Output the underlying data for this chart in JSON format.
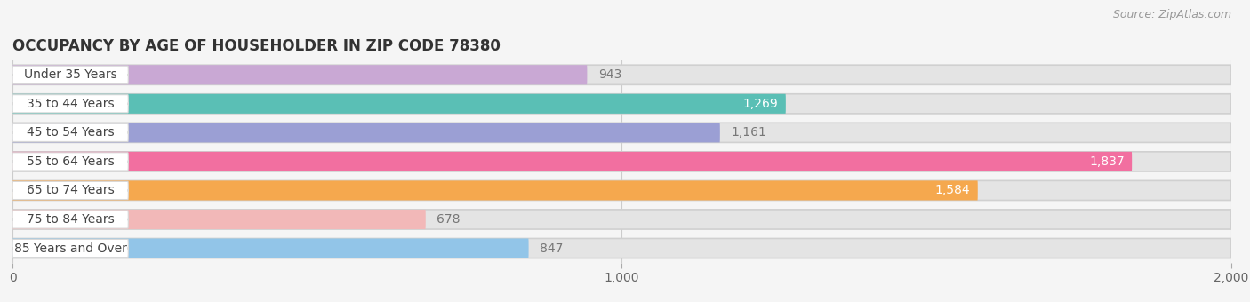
{
  "title": "OCCUPANCY BY AGE OF HOUSEHOLDER IN ZIP CODE 78380",
  "source": "Source: ZipAtlas.com",
  "categories": [
    "Under 35 Years",
    "35 to 44 Years",
    "45 to 54 Years",
    "55 to 64 Years",
    "65 to 74 Years",
    "75 to 84 Years",
    "85 Years and Over"
  ],
  "values": [
    943,
    1269,
    1161,
    1837,
    1584,
    678,
    847
  ],
  "bar_colors": [
    "#c9a8d4",
    "#5abfb5",
    "#9b9fd4",
    "#f26fa0",
    "#f5a84e",
    "#f2b8b8",
    "#92c5e8"
  ],
  "xlim": [
    0,
    2000
  ],
  "xticks": [
    0,
    1000,
    2000
  ],
  "background_color": "#f5f5f5",
  "bar_background_color": "#e4e4e4",
  "title_fontsize": 12,
  "label_fontsize": 10,
  "value_fontsize": 10,
  "source_fontsize": 9,
  "inside_threshold": 1200,
  "value_colors_inside": [
    "white",
    "white",
    "white",
    "white",
    "white",
    "white",
    "white"
  ],
  "value_colors_outside": [
    "#888888",
    "#888888",
    "#888888",
    "#888888",
    "#888888",
    "#888888",
    "#888888"
  ]
}
